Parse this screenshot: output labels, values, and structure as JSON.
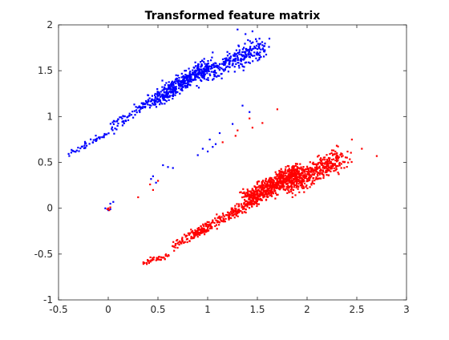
{
  "chart_data": {
    "type": "scatter",
    "title": "Transformed feature matrix",
    "xlabel": "",
    "ylabel": "",
    "xlim": [
      -0.5,
      3
    ],
    "ylim": [
      -1,
      2
    ],
    "x_ticks": [
      -0.5,
      0,
      0.5,
      1,
      1.5,
      2,
      2.5,
      3
    ],
    "y_ticks": [
      -1,
      -0.5,
      0,
      0.5,
      1,
      1.5,
      2
    ],
    "x_tick_labels": [
      "-0.5",
      "0",
      "0.5",
      "1",
      "1.5",
      "2",
      "2.5",
      "3"
    ],
    "y_tick_labels": [
      "-1",
      "-0.5",
      "0",
      "0.5",
      "1",
      "1.5",
      "2"
    ],
    "grid": false,
    "legend": "none",
    "series": [
      {
        "color": "#0000ff",
        "marker": "point",
        "segments": [
          {
            "x0": -0.4,
            "y0": 0.58,
            "x1": 0.1,
            "y1": 0.88,
            "spread": 0.03,
            "points": 50
          },
          {
            "x0": 0.05,
            "y0": 0.9,
            "x1": 0.55,
            "y1": 1.25,
            "spread": 0.045,
            "points": 110
          },
          {
            "x0": 0.5,
            "y0": 1.2,
            "x1": 1.0,
            "y1": 1.55,
            "spread": 0.07,
            "points": 380
          },
          {
            "x0": 0.95,
            "y0": 1.45,
            "x1": 1.55,
            "y1": 1.75,
            "spread": 0.09,
            "points": 260
          }
        ],
        "points": [
          {
            "x": 1.3,
            "y": 1.95
          },
          {
            "x": 1.45,
            "y": 1.93
          },
          {
            "x": 1.52,
            "y": 1.85
          },
          {
            "x": 1.62,
            "y": 1.85
          },
          {
            "x": 1.55,
            "y": 1.78
          },
          {
            "x": 1.38,
            "y": 1.9
          },
          {
            "x": 1.05,
            "y": 1.7
          },
          {
            "x": 1.42,
            "y": 1.05
          },
          {
            "x": 1.35,
            "y": 1.12
          },
          {
            "x": 1.25,
            "y": 0.92
          },
          {
            "x": 1.12,
            "y": 0.82
          },
          {
            "x": 1.08,
            "y": 0.7
          },
          {
            "x": 1.02,
            "y": 0.75
          },
          {
            "x": 1.05,
            "y": 0.67
          },
          {
            "x": 1.0,
            "y": 0.62
          },
          {
            "x": 0.95,
            "y": 0.65
          },
          {
            "x": 0.9,
            "y": 0.58
          },
          {
            "x": 0.6,
            "y": 0.45
          },
          {
            "x": 0.55,
            "y": 0.47
          },
          {
            "x": 0.65,
            "y": 0.44
          },
          {
            "x": 0.45,
            "y": 0.35
          },
          {
            "x": 0.48,
            "y": 0.28
          },
          {
            "x": 0.43,
            "y": 0.32
          },
          {
            "x": 0.02,
            "y": 0.05
          },
          {
            "x": 0.05,
            "y": 0.07
          },
          {
            "x": -0.03,
            "y": 0.0
          },
          {
            "x": 0.0,
            "y": -0.02
          },
          {
            "x": 0.02,
            "y": -0.01
          }
        ]
      },
      {
        "color": "#ff0000",
        "marker": "point",
        "segments": [
          {
            "x0": 0.35,
            "y0": -0.6,
            "x1": 0.6,
            "y1": -0.52,
            "spread": 0.025,
            "points": 45
          },
          {
            "x0": 0.65,
            "y0": -0.42,
            "x1": 1.0,
            "y1": -0.2,
            "spread": 0.04,
            "points": 80
          },
          {
            "x0": 0.85,
            "y0": -0.3,
            "x1": 1.5,
            "y1": 0.1,
            "spread": 0.045,
            "points": 220
          },
          {
            "x0": 1.4,
            "y0": 0.1,
            "x1": 1.9,
            "y1": 0.4,
            "spread": 0.08,
            "points": 620
          },
          {
            "x0": 1.8,
            "y0": 0.25,
            "x1": 2.35,
            "y1": 0.55,
            "spread": 0.1,
            "points": 420
          }
        ],
        "points": [
          {
            "x": 2.7,
            "y": 0.57
          },
          {
            "x": 2.55,
            "y": 0.65
          },
          {
            "x": 2.45,
            "y": 0.75
          },
          {
            "x": 1.7,
            "y": 1.08
          },
          {
            "x": 1.55,
            "y": 0.93
          },
          {
            "x": 1.45,
            "y": 0.88
          },
          {
            "x": 1.42,
            "y": 0.98
          },
          {
            "x": 1.3,
            "y": 0.85
          },
          {
            "x": 1.28,
            "y": 0.79
          },
          {
            "x": 1.15,
            "y": 0.72
          },
          {
            "x": 0.5,
            "y": 0.3
          },
          {
            "x": 0.42,
            "y": 0.26
          },
          {
            "x": 0.45,
            "y": 0.2
          },
          {
            "x": 0.3,
            "y": 0.12
          },
          {
            "x": 0.0,
            "y": 0.0
          },
          {
            "x": 0.02,
            "y": 0.01
          },
          {
            "x": -0.01,
            "y": -0.01
          },
          {
            "x": 0.01,
            "y": -0.02
          }
        ]
      }
    ]
  }
}
